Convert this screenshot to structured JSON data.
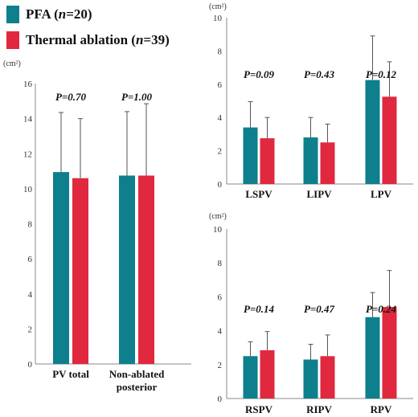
{
  "colors": {
    "pfa": "#0e7f8c",
    "thermal": "#e0283f",
    "axis": "#8a8a8a",
    "text": "#111111"
  },
  "legend": {
    "pfa": {
      "label_a": "PFA (",
      "label_n": "n",
      "label_b": "=20)"
    },
    "thermal": {
      "label_a": "Thermal ablation (",
      "label_n": "n",
      "label_b": "=39)"
    }
  },
  "chart_data": [
    {
      "type": "bar",
      "unit_label": "(cm²)",
      "categories": [
        "PV total",
        "Non-ablated posterior"
      ],
      "category_lines": [
        [
          "PV total"
        ],
        [
          "Non-ablated",
          "posterior"
        ]
      ],
      "series": [
        {
          "name": "PFA (n=20)",
          "values": [
            10.95,
            10.75
          ],
          "errors": [
            3.4,
            3.65
          ]
        },
        {
          "name": "Thermal ablation (n=39)",
          "values": [
            10.6,
            10.75
          ],
          "errors": [
            3.4,
            4.1
          ]
        }
      ],
      "pvalues": [
        "P=0.70",
        "P=1.00"
      ],
      "ylim": [
        0,
        16
      ],
      "yticks": [
        0,
        2,
        4,
        6,
        8,
        10,
        12,
        14,
        16
      ]
    },
    {
      "type": "bar",
      "unit_label": "(cm²)",
      "categories": [
        "LSPV",
        "LIPV",
        "LPV"
      ],
      "category_lines": [
        [
          "LSPV"
        ],
        [
          "LIPV"
        ],
        [
          "LPV"
        ]
      ],
      "series": [
        {
          "name": "PFA (n=20)",
          "values": [
            3.4,
            2.8,
            6.25
          ],
          "errors": [
            1.55,
            1.2,
            2.65
          ]
        },
        {
          "name": "Thermal ablation (n=39)",
          "values": [
            2.75,
            2.5,
            5.25
          ],
          "errors": [
            1.25,
            1.1,
            2.1
          ]
        }
      ],
      "pvalues": [
        "P=0.09",
        "P=0.43",
        "P=0.12"
      ],
      "ylim": [
        0,
        10
      ],
      "yticks": [
        0,
        2,
        4,
        6,
        8,
        10
      ]
    },
    {
      "type": "bar",
      "unit_label": "(cm²)",
      "categories": [
        "RSPV",
        "RIPV",
        "RPV"
      ],
      "category_lines": [
        [
          "RSPV"
        ],
        [
          "RIPV"
        ],
        [
          "RPV"
        ]
      ],
      "series": [
        {
          "name": "PFA (n=20)",
          "values": [
            2.5,
            2.3,
            4.8
          ],
          "errors": [
            0.85,
            0.9,
            1.45
          ]
        },
        {
          "name": "Thermal ablation (n=39)",
          "values": [
            2.85,
            2.5,
            5.4
          ],
          "errors": [
            1.1,
            1.25,
            2.15
          ]
        }
      ],
      "pvalues": [
        "P=0.14",
        "P=0.47",
        "P=0.24"
      ],
      "ylim": [
        0,
        10
      ],
      "yticks": [
        0,
        2,
        4,
        6,
        8,
        10
      ]
    }
  ]
}
